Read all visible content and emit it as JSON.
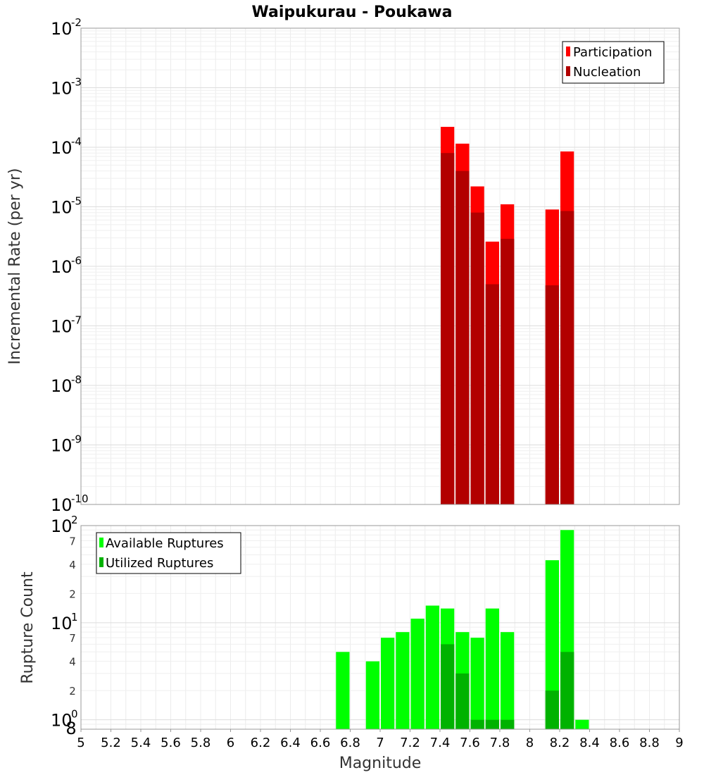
{
  "chart_data": [
    {
      "type": "bar",
      "title": "Waipukurau - Poukawa",
      "xlabel": "",
      "ylabel": "Incremental Rate (per yr)",
      "yscale": "log",
      "ylim": [
        1e-10,
        0.01
      ],
      "xlim": [
        5,
        9
      ],
      "grid": true,
      "legend_position": "top-right",
      "y_tick_exponents": [
        "-10",
        "-9",
        "-8",
        "-7",
        "-6",
        "-5",
        "-4",
        "-3",
        "-2"
      ],
      "x": [
        7.45,
        7.55,
        7.65,
        7.75,
        7.85,
        8.15,
        8.25
      ],
      "series": [
        {
          "name": "Participation",
          "color": "#ff0000",
          "values": [
            0.00022,
            0.000115,
            2.2e-05,
            2.6e-06,
            1.1e-05,
            9e-06,
            8.5e-05
          ]
        },
        {
          "name": "Nucleation",
          "color": "#b20000",
          "values": [
            8e-05,
            4e-05,
            8e-06,
            5e-07,
            2.9e-06,
            4.8e-07,
            8.5e-06
          ]
        }
      ]
    },
    {
      "type": "bar",
      "title": "",
      "xlabel": "Magnitude",
      "ylabel": "Rupture Count",
      "yscale": "log",
      "ylim": [
        0.8,
        100
      ],
      "xlim": [
        5,
        9
      ],
      "grid": true,
      "legend_position": "top-left",
      "y_major_tick_exponents": [
        "0",
        "1",
        "2"
      ],
      "y_minor_tick_labels": [
        "8",
        "2",
        "4",
        "7",
        "2",
        "4",
        "7"
      ],
      "x_tick_labels": [
        "5",
        "5.2",
        "5.4",
        "5.6",
        "5.8",
        "6",
        "6.2",
        "6.4",
        "6.6",
        "6.8",
        "7",
        "7.2",
        "7.4",
        "7.6",
        "7.8",
        "8",
        "8.2",
        "8.4",
        "8.6",
        "8.8",
        "9"
      ],
      "x": [
        6.75,
        6.95,
        7.05,
        7.15,
        7.25,
        7.35,
        7.45,
        7.55,
        7.65,
        7.75,
        7.85,
        8.15,
        8.25,
        8.35
      ],
      "series": [
        {
          "name": "Available Ruptures",
          "color": "#00ff00",
          "values": [
            5,
            4,
            7,
            8,
            11,
            15,
            14,
            8,
            7,
            14,
            8,
            44,
            90,
            1
          ]
        },
        {
          "name": "Utilized Ruptures",
          "color": "#00b200",
          "values": [
            0,
            0,
            0,
            0,
            0,
            0,
            6,
            3,
            1,
            1,
            1,
            2,
            5,
            0
          ]
        }
      ]
    }
  ]
}
